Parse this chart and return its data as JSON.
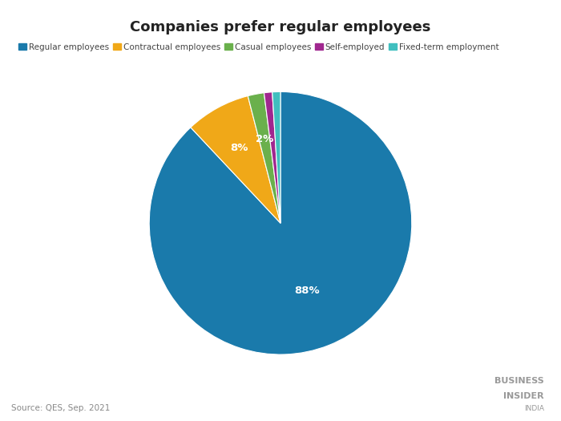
{
  "title": "Companies prefer regular employees",
  "labels": [
    "Regular employees",
    "Contractual employees",
    "Casual employees",
    "Self-employed",
    "Fixed-term employment"
  ],
  "values": [
    88,
    8,
    2,
    1,
    1
  ],
  "colors": [
    "#1a7aab",
    "#f0a818",
    "#6ab04c",
    "#a0278f",
    "#40bfbf"
  ],
  "pct_labels": [
    "88%",
    "8%",
    "2%",
    "",
    ""
  ],
  "source": "Source: QES, Sep. 2021",
  "watermark_line1": "BUSINESS",
  "watermark_line2": "INSIDER",
  "watermark_line3": "INDIA",
  "bg_color": "#ffffff",
  "label_color": "#ffffff",
  "title_color": "#222222",
  "legend_color": "#444444",
  "title_fontsize": 13,
  "legend_fontsize": 7.5
}
